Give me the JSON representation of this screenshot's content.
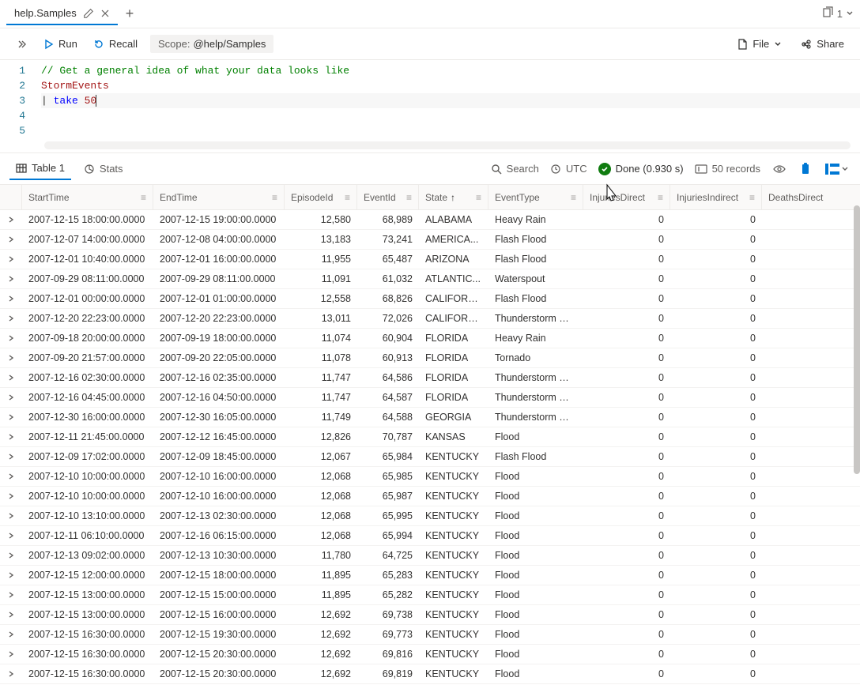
{
  "tab": {
    "title": "help.Samples",
    "count": "1"
  },
  "toolbar": {
    "run": "Run",
    "recall": "Recall",
    "scope_label": "Scope:",
    "scope_value": "@help/Samples",
    "file": "File",
    "share": "Share"
  },
  "editor": {
    "lines": [
      "1",
      "2",
      "3",
      "4",
      "5"
    ],
    "comment": "// Get a general idea of what your data looks like",
    "ident": "StormEvents",
    "op": "|",
    "kw": "take",
    "num": "50"
  },
  "results": {
    "table_tab": "Table 1",
    "stats_tab": "Stats",
    "search": "Search",
    "utc": "UTC",
    "done": "Done (0.930 s)",
    "records": "50 records"
  },
  "columns": {
    "start": "StartTime",
    "end": "EndTime",
    "ep": "EpisodeId",
    "ev": "EventId",
    "state": "State",
    "type": "EventType",
    "injd": "InjuriesDirect",
    "inji": "InjuriesIndirect",
    "dd": "DeathsDirect"
  },
  "rows": [
    {
      "st": "2007-12-15 18:00:00.0000",
      "et": "2007-12-15 19:00:00.0000",
      "ep": "12,580",
      "ev": "68,989",
      "state": "ALABAMA",
      "type": "Heavy Rain",
      "id": "0",
      "ii": "0"
    },
    {
      "st": "2007-12-07 14:00:00.0000",
      "et": "2007-12-08 04:00:00.0000",
      "ep": "13,183",
      "ev": "73,241",
      "state": "AMERICA...",
      "type": "Flash Flood",
      "id": "0",
      "ii": "0"
    },
    {
      "st": "2007-12-01 10:40:00.0000",
      "et": "2007-12-01 16:00:00.0000",
      "ep": "11,955",
      "ev": "65,487",
      "state": "ARIZONA",
      "type": "Flash Flood",
      "id": "0",
      "ii": "0"
    },
    {
      "st": "2007-09-29 08:11:00.0000",
      "et": "2007-09-29 08:11:00.0000",
      "ep": "11,091",
      "ev": "61,032",
      "state": "ATLANTIC...",
      "type": "Waterspout",
      "id": "0",
      "ii": "0"
    },
    {
      "st": "2007-12-01 00:00:00.0000",
      "et": "2007-12-01 01:00:00.0000",
      "ep": "12,558",
      "ev": "68,826",
      "state": "CALIFORN...",
      "type": "Flash Flood",
      "id": "0",
      "ii": "0"
    },
    {
      "st": "2007-12-20 22:23:00.0000",
      "et": "2007-12-20 22:23:00.0000",
      "ep": "13,011",
      "ev": "72,026",
      "state": "CALIFORN...",
      "type": "Thunderstorm Wind",
      "id": "0",
      "ii": "0"
    },
    {
      "st": "2007-09-18 20:00:00.0000",
      "et": "2007-09-19 18:00:00.0000",
      "ep": "11,074",
      "ev": "60,904",
      "state": "FLORIDA",
      "type": "Heavy Rain",
      "id": "0",
      "ii": "0"
    },
    {
      "st": "2007-09-20 21:57:00.0000",
      "et": "2007-09-20 22:05:00.0000",
      "ep": "11,078",
      "ev": "60,913",
      "state": "FLORIDA",
      "type": "Tornado",
      "id": "0",
      "ii": "0"
    },
    {
      "st": "2007-12-16 02:30:00.0000",
      "et": "2007-12-16 02:35:00.0000",
      "ep": "11,747",
      "ev": "64,586",
      "state": "FLORIDA",
      "type": "Thunderstorm Wind",
      "id": "0",
      "ii": "0"
    },
    {
      "st": "2007-12-16 04:45:00.0000",
      "et": "2007-12-16 04:50:00.0000",
      "ep": "11,747",
      "ev": "64,587",
      "state": "FLORIDA",
      "type": "Thunderstorm Wind",
      "id": "0",
      "ii": "0"
    },
    {
      "st": "2007-12-30 16:00:00.0000",
      "et": "2007-12-30 16:05:00.0000",
      "ep": "11,749",
      "ev": "64,588",
      "state": "GEORGIA",
      "type": "Thunderstorm Wind",
      "id": "0",
      "ii": "0"
    },
    {
      "st": "2007-12-11 21:45:00.0000",
      "et": "2007-12-12 16:45:00.0000",
      "ep": "12,826",
      "ev": "70,787",
      "state": "KANSAS",
      "type": "Flood",
      "id": "0",
      "ii": "0"
    },
    {
      "st": "2007-12-09 17:02:00.0000",
      "et": "2007-12-09 18:45:00.0000",
      "ep": "12,067",
      "ev": "65,984",
      "state": "KENTUCKY",
      "type": "Flash Flood",
      "id": "0",
      "ii": "0"
    },
    {
      "st": "2007-12-10 10:00:00.0000",
      "et": "2007-12-10 16:00:00.0000",
      "ep": "12,068",
      "ev": "65,985",
      "state": "KENTUCKY",
      "type": "Flood",
      "id": "0",
      "ii": "0"
    },
    {
      "st": "2007-12-10 10:00:00.0000",
      "et": "2007-12-10 16:00:00.0000",
      "ep": "12,068",
      "ev": "65,987",
      "state": "KENTUCKY",
      "type": "Flood",
      "id": "0",
      "ii": "0"
    },
    {
      "st": "2007-12-10 13:10:00.0000",
      "et": "2007-12-13 02:30:00.0000",
      "ep": "12,068",
      "ev": "65,995",
      "state": "KENTUCKY",
      "type": "Flood",
      "id": "0",
      "ii": "0"
    },
    {
      "st": "2007-12-11 06:10:00.0000",
      "et": "2007-12-16 06:15:00.0000",
      "ep": "12,068",
      "ev": "65,994",
      "state": "KENTUCKY",
      "type": "Flood",
      "id": "0",
      "ii": "0"
    },
    {
      "st": "2007-12-13 09:02:00.0000",
      "et": "2007-12-13 10:30:00.0000",
      "ep": "11,780",
      "ev": "64,725",
      "state": "KENTUCKY",
      "type": "Flood",
      "id": "0",
      "ii": "0"
    },
    {
      "st": "2007-12-15 12:00:00.0000",
      "et": "2007-12-15 18:00:00.0000",
      "ep": "11,895",
      "ev": "65,283",
      "state": "KENTUCKY",
      "type": "Flood",
      "id": "0",
      "ii": "0"
    },
    {
      "st": "2007-12-15 13:00:00.0000",
      "et": "2007-12-15 15:00:00.0000",
      "ep": "11,895",
      "ev": "65,282",
      "state": "KENTUCKY",
      "type": "Flood",
      "id": "0",
      "ii": "0"
    },
    {
      "st": "2007-12-15 13:00:00.0000",
      "et": "2007-12-15 16:00:00.0000",
      "ep": "12,692",
      "ev": "69,738",
      "state": "KENTUCKY",
      "type": "Flood",
      "id": "0",
      "ii": "0"
    },
    {
      "st": "2007-12-15 16:30:00.0000",
      "et": "2007-12-15 19:30:00.0000",
      "ep": "12,692",
      "ev": "69,773",
      "state": "KENTUCKY",
      "type": "Flood",
      "id": "0",
      "ii": "0"
    },
    {
      "st": "2007-12-15 16:30:00.0000",
      "et": "2007-12-15 20:30:00.0000",
      "ep": "12,692",
      "ev": "69,816",
      "state": "KENTUCKY",
      "type": "Flood",
      "id": "0",
      "ii": "0"
    },
    {
      "st": "2007-12-15 16:30:00.0000",
      "et": "2007-12-15 20:30:00.0000",
      "ep": "12,692",
      "ev": "69,819",
      "state": "KENTUCKY",
      "type": "Flood",
      "id": "0",
      "ii": "0"
    }
  ]
}
